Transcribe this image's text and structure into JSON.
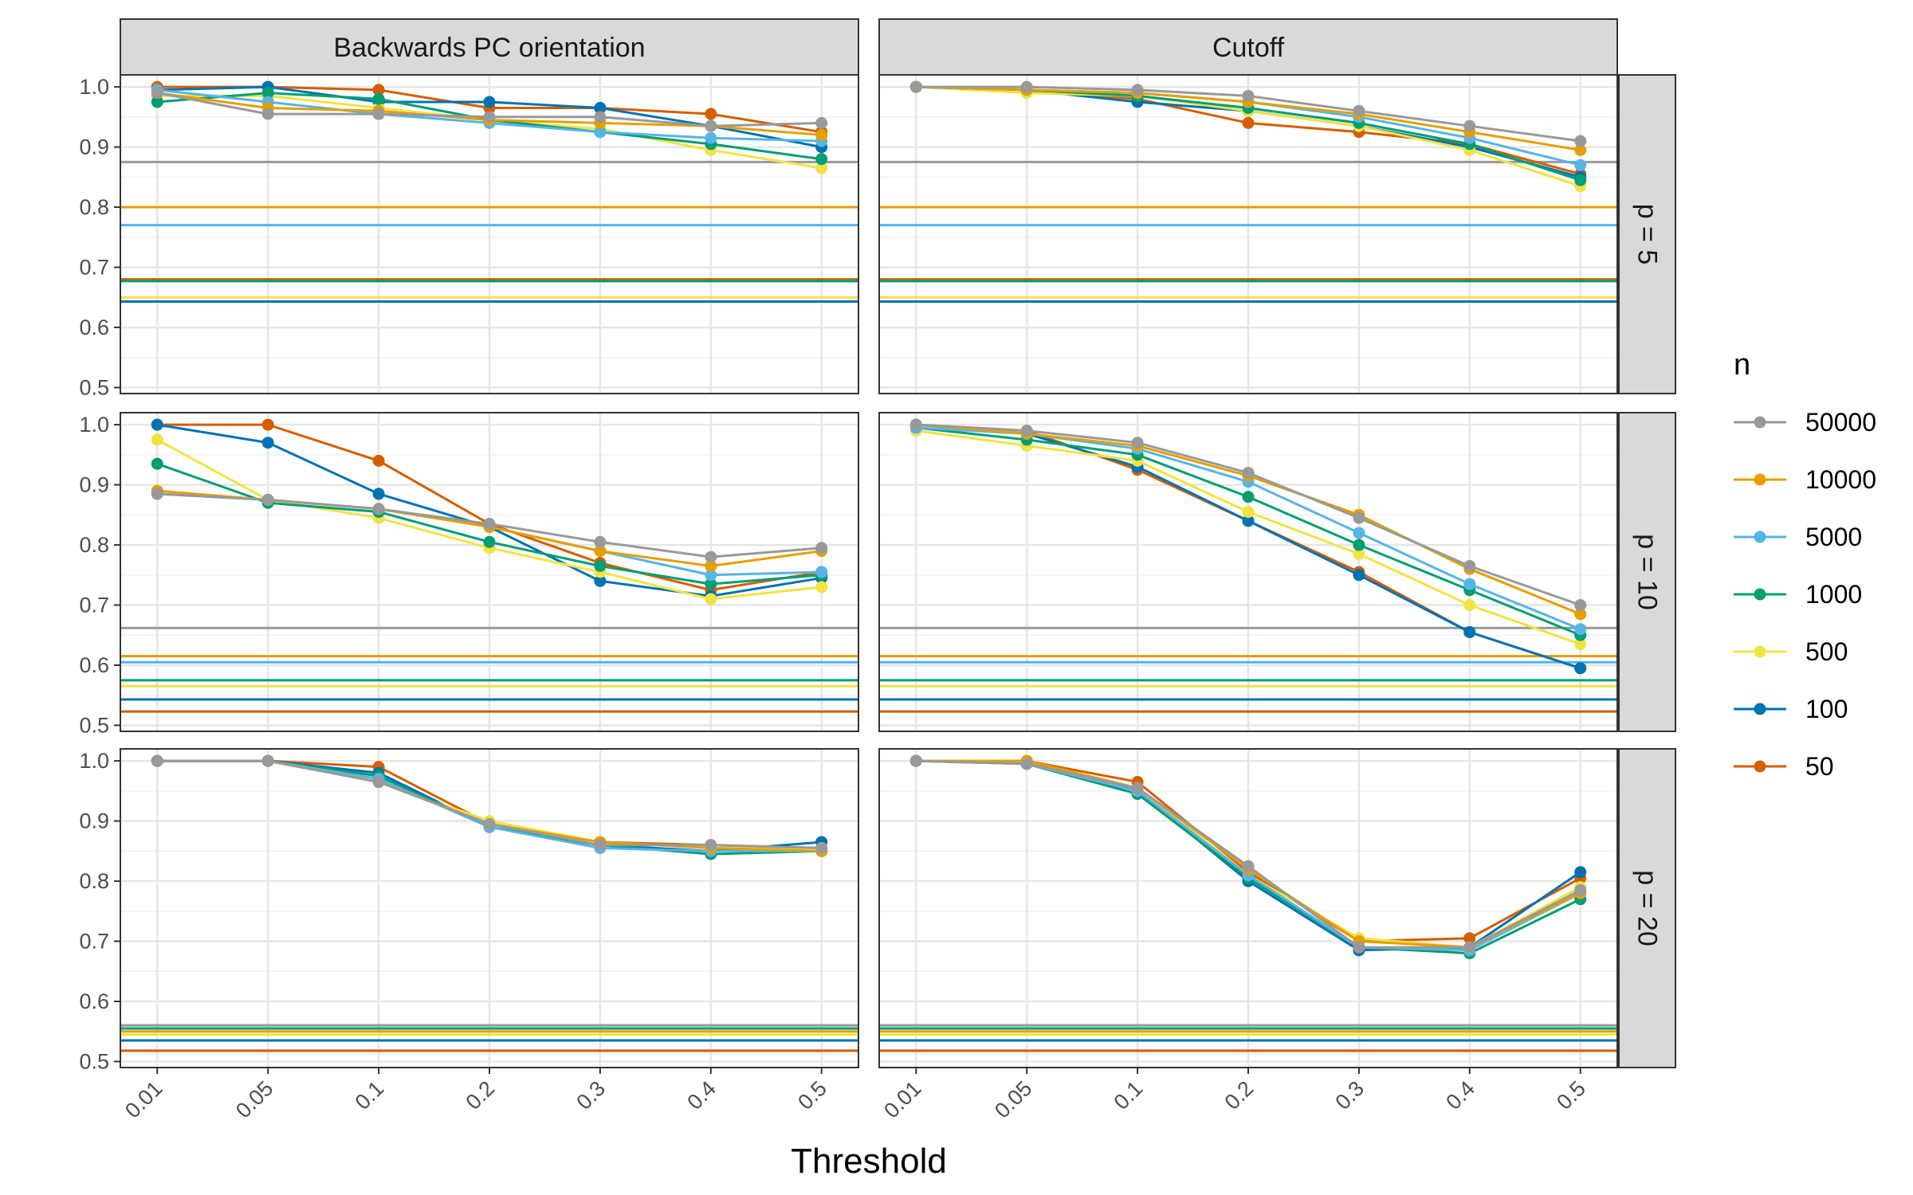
{
  "chart_data": {
    "type": "line",
    "xlabel": "Threshold",
    "ylabel": "",
    "x_categories": [
      "0.01",
      "0.05",
      "0.1",
      "0.2",
      "0.3",
      "0.4",
      "0.5"
    ],
    "y_ticks": [
      "0.5",
      "0.6",
      "0.7",
      "0.8",
      "0.9",
      "1.0"
    ],
    "ylim": [
      0.49,
      1.02
    ],
    "columns": [
      "Backwards PC orientation",
      "Cutoff"
    ],
    "rows": [
      "p = 5",
      "p = 10",
      "p = 20"
    ],
    "legend": {
      "title": "n",
      "position": "right",
      "entries": [
        {
          "name": "50000",
          "color": "#999999"
        },
        {
          "name": "10000",
          "color": "#E69F00"
        },
        {
          "name": "5000",
          "color": "#56B4E9"
        },
        {
          "name": "1000",
          "color": "#009E73"
        },
        {
          "name": "500",
          "color": "#F0E442"
        },
        {
          "name": "100",
          "color": "#0072B2"
        },
        {
          "name": "50",
          "color": "#D55E00"
        }
      ]
    },
    "panels": [
      {
        "row": 0,
        "col": 0,
        "baselines": {
          "50000": 0.875,
          "10000": 0.8,
          "5000": 0.77,
          "1000": 0.677,
          "500": 0.65,
          "100": 0.643,
          "50": 0.68
        },
        "series": {
          "50000": [
            0.99,
            0.955,
            0.955,
            0.95,
            0.95,
            0.935,
            0.94
          ],
          "10000": [
            0.99,
            0.965,
            0.96,
            0.945,
            0.94,
            0.935,
            0.92
          ],
          "5000": [
            0.995,
            0.975,
            0.955,
            0.94,
            0.925,
            0.915,
            0.91
          ],
          "1000": [
            0.975,
            0.99,
            0.98,
            0.945,
            0.925,
            0.905,
            0.88
          ],
          "500": [
            0.985,
            0.985,
            0.965,
            0.945,
            0.93,
            0.895,
            0.865
          ],
          "100": [
            0.995,
            1.0,
            0.975,
            0.975,
            0.965,
            0.935,
            0.9
          ],
          "50": [
            1.0,
            1.0,
            0.995,
            0.965,
            0.965,
            0.955,
            0.925
          ]
        }
      },
      {
        "row": 0,
        "col": 1,
        "baselines": {
          "50000": 0.875,
          "10000": 0.8,
          "5000": 0.77,
          "1000": 0.677,
          "500": 0.65,
          "100": 0.643,
          "50": 0.68
        },
        "series": {
          "50000": [
            1.0,
            1.0,
            0.995,
            0.985,
            0.96,
            0.935,
            0.91
          ],
          "10000": [
            1.0,
            0.995,
            0.99,
            0.975,
            0.955,
            0.925,
            0.895
          ],
          "5000": [
            1.0,
            0.995,
            0.99,
            0.975,
            0.95,
            0.915,
            0.87
          ],
          "1000": [
            1.0,
            0.995,
            0.985,
            0.965,
            0.94,
            0.905,
            0.845
          ],
          "500": [
            1.0,
            0.99,
            0.985,
            0.96,
            0.935,
            0.895,
            0.835
          ],
          "100": [
            1.0,
            0.995,
            0.975,
            0.96,
            0.935,
            0.9,
            0.85
          ],
          "50": [
            1.0,
            0.995,
            0.98,
            0.94,
            0.925,
            0.905,
            0.855
          ]
        }
      },
      {
        "row": 1,
        "col": 0,
        "baselines": {
          "50000": 0.662,
          "10000": 0.615,
          "5000": 0.605,
          "1000": 0.575,
          "500": 0.565,
          "100": 0.543,
          "50": 0.523
        },
        "series": {
          "50000": [
            0.885,
            0.875,
            0.86,
            0.835,
            0.805,
            0.78,
            0.795
          ],
          "10000": [
            0.89,
            0.875,
            0.86,
            0.83,
            0.79,
            0.765,
            0.79
          ],
          "5000": [
            0.885,
            0.875,
            0.86,
            0.83,
            0.79,
            0.75,
            0.755
          ],
          "1000": [
            0.935,
            0.87,
            0.855,
            0.805,
            0.765,
            0.735,
            0.75
          ],
          "500": [
            0.975,
            0.875,
            0.845,
            0.795,
            0.755,
            0.71,
            0.73
          ],
          "100": [
            1.0,
            0.97,
            0.885,
            0.83,
            0.74,
            0.715,
            0.745
          ],
          "50": [
            1.0,
            1.0,
            0.94,
            0.835,
            0.77,
            0.725,
            0.755
          ]
        }
      },
      {
        "row": 1,
        "col": 1,
        "baselines": {
          "50000": 0.662,
          "10000": 0.615,
          "5000": 0.605,
          "1000": 0.575,
          "500": 0.565,
          "100": 0.543,
          "50": 0.523
        },
        "series": {
          "50000": [
            1.0,
            0.99,
            0.97,
            0.92,
            0.845,
            0.765,
            0.7
          ],
          "10000": [
            1.0,
            0.985,
            0.965,
            0.915,
            0.85,
            0.76,
            0.685
          ],
          "5000": [
            0.995,
            0.985,
            0.96,
            0.905,
            0.82,
            0.735,
            0.66
          ],
          "1000": [
            0.995,
            0.975,
            0.95,
            0.88,
            0.8,
            0.725,
            0.65
          ],
          "500": [
            0.99,
            0.965,
            0.94,
            0.855,
            0.785,
            0.7,
            0.635
          ],
          "100": [
            1.0,
            0.985,
            0.93,
            0.84,
            0.75,
            0.655,
            0.595
          ],
          "50": [
            1.0,
            0.99,
            0.925,
            0.84,
            0.755,
            0.655,
            0.595
          ]
        }
      },
      {
        "row": 2,
        "col": 0,
        "baselines": {
          "50000": 0.56,
          "10000": 0.55,
          "5000": 0.56,
          "1000": 0.555,
          "500": 0.545,
          "100": 0.535,
          "50": 0.518
        },
        "series": {
          "50000": [
            1.0,
            1.0,
            0.965,
            0.895,
            0.86,
            0.86,
            0.855
          ],
          "10000": [
            1.0,
            1.0,
            0.965,
            0.895,
            0.865,
            0.855,
            0.85
          ],
          "5000": [
            1.0,
            1.0,
            0.97,
            0.89,
            0.855,
            0.85,
            0.85
          ],
          "1000": [
            1.0,
            1.0,
            0.975,
            0.89,
            0.86,
            0.845,
            0.85
          ],
          "500": [
            1.0,
            1.0,
            0.965,
            0.9,
            0.865,
            0.855,
            0.855
          ],
          "100": [
            1.0,
            1.0,
            0.98,
            0.89,
            0.86,
            0.85,
            0.865
          ],
          "50": [
            1.0,
            1.0,
            0.99,
            0.895,
            0.865,
            0.86,
            0.855
          ]
        }
      },
      {
        "row": 2,
        "col": 1,
        "baselines": {
          "50000": 0.56,
          "10000": 0.55,
          "5000": 0.56,
          "1000": 0.555,
          "500": 0.545,
          "100": 0.535,
          "50": 0.518
        },
        "series": {
          "50000": [
            1.0,
            0.995,
            0.955,
            0.825,
            0.69,
            0.69,
            0.785
          ],
          "10000": [
            1.0,
            1.0,
            0.955,
            0.82,
            0.7,
            0.69,
            0.78
          ],
          "5000": [
            1.0,
            0.995,
            0.95,
            0.81,
            0.69,
            0.685,
            0.78
          ],
          "1000": [
            1.0,
            0.995,
            0.945,
            0.805,
            0.69,
            0.68,
            0.77
          ],
          "500": [
            1.0,
            1.0,
            0.955,
            0.81,
            0.705,
            0.69,
            0.79
          ],
          "100": [
            1.0,
            1.0,
            0.95,
            0.8,
            0.685,
            0.69,
            0.815
          ],
          "50": [
            1.0,
            1.0,
            0.965,
            0.815,
            0.7,
            0.705,
            0.805
          ]
        }
      }
    ]
  }
}
